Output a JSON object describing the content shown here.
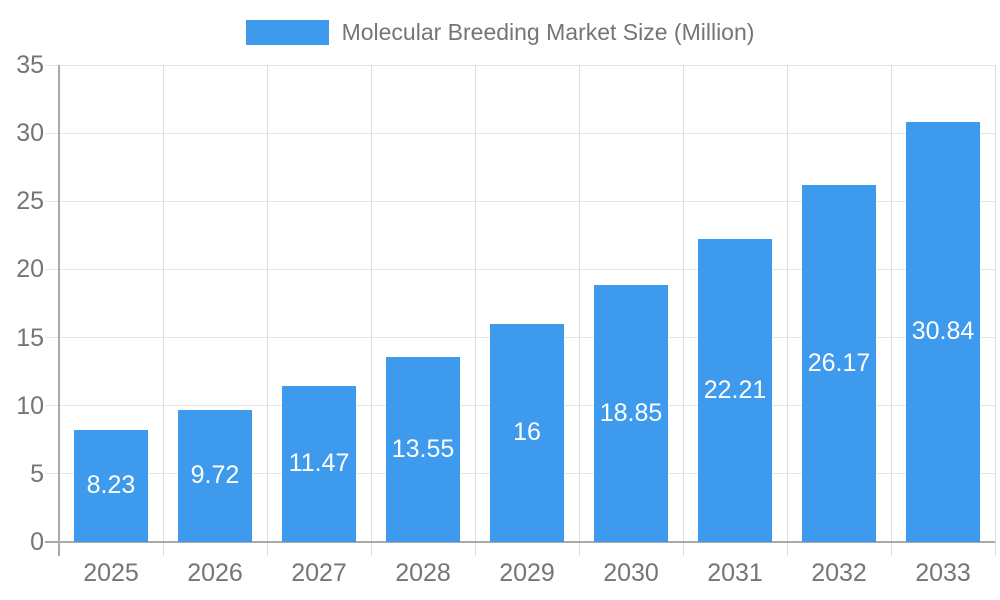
{
  "chart_data": {
    "type": "bar",
    "title": "Molecular Breeding Market Size (Million)",
    "categories": [
      "2025",
      "2026",
      "2027",
      "2028",
      "2029",
      "2030",
      "2031",
      "2032",
      "2033"
    ],
    "values": [
      8.23,
      9.72,
      11.47,
      13.55,
      16,
      18.85,
      22.21,
      26.17,
      30.84
    ],
    "value_labels": [
      "8.23",
      "9.72",
      "11.47",
      "13.55",
      "16",
      "18.85",
      "22.21",
      "26.17",
      "30.84"
    ],
    "xlabel": "",
    "ylabel": "",
    "ylim": [
      0,
      35
    ],
    "y_ticks": [
      0,
      5,
      10,
      15,
      20,
      25,
      30,
      35
    ],
    "grid": "on",
    "legend_position": "top-center",
    "legend": [
      {
        "label": "Molecular Breeding Market Size (Million)",
        "color": "#3d9aed"
      }
    ],
    "colors": {
      "bar": "#3d9aed",
      "h_grid": "#e6e6e6",
      "v_grid": "#dedede",
      "axis": "#a9a9a9",
      "tick_text": "#757575",
      "bar_label_text": "#ffffff",
      "background": "#ffffff"
    }
  }
}
